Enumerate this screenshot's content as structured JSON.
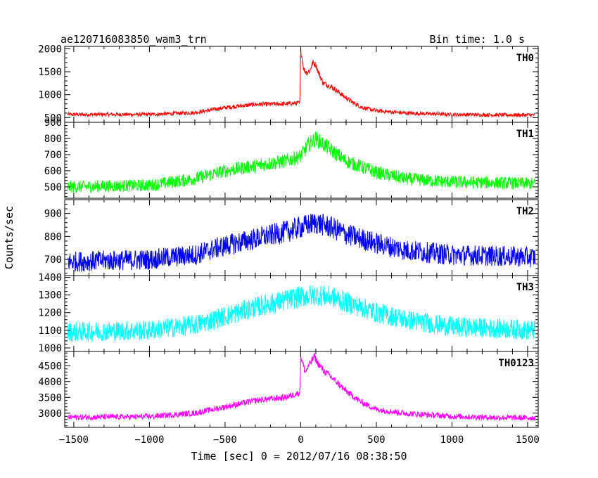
{
  "chart_data": {
    "type": "line",
    "title": "ae120716083850_wam3_trn",
    "bin_time_label": "Bin time: 1.0 s",
    "ylabel": "Counts/sec",
    "xlabel": "Time [sec] 0 = 2012/07/16 08:38:50",
    "xlim": [
      -1560,
      1570
    ],
    "xticks": [
      -1500,
      -1000,
      -500,
      0,
      500,
      1000,
      1500
    ],
    "xtick_labels": [
      "−1500",
      "−1000",
      "−500",
      "0",
      "500",
      "1000",
      "1500"
    ],
    "grid": false,
    "panels": [
      {
        "name": "TH0",
        "color": "#ff0000",
        "ylim": [
          400,
          2050
        ],
        "yticks": [
          500,
          1000,
          1500,
          2000
        ],
        "ytick_labels": [
          "500",
          "1000",
          "1500",
          "2000"
        ],
        "x": [
          -1540,
          -1000,
          -700,
          -500,
          -300,
          -100,
          -5,
          0,
          20,
          40,
          60,
          80,
          100,
          120,
          150,
          200,
          250,
          300,
          350,
          400,
          500,
          700,
          1000,
          1300,
          1550
        ],
        "values": [
          570,
          570,
          610,
          720,
          790,
          800,
          820,
          2000,
          1550,
          1480,
          1520,
          1700,
          1650,
          1460,
          1250,
          1180,
          1060,
          930,
          820,
          730,
          650,
          600,
          570,
          560,
          560
        ]
      },
      {
        "name": "TH1",
        "color": "#00ff00",
        "ylim": [
          430,
          900
        ],
        "yticks": [
          500,
          600,
          700,
          800,
          900
        ],
        "ytick_labels": [
          "500",
          "600",
          "700",
          "800",
          "900"
        ],
        "x": [
          -1540,
          -1000,
          -700,
          -500,
          -300,
          -100,
          0,
          50,
          100,
          200,
          300,
          500,
          700,
          1000,
          1300,
          1550
        ],
        "values": [
          500,
          510,
          550,
          600,
          630,
          660,
          690,
          760,
          800,
          730,
          660,
          590,
          550,
          530,
          525,
          520
        ]
      },
      {
        "name": "TH2",
        "color": "#0000ff",
        "ylim": [
          630,
          960
        ],
        "yticks": [
          700,
          800,
          900
        ],
        "ytick_labels": [
          "700",
          "800",
          "900"
        ],
        "x": [
          -1540,
          -1000,
          -700,
          -500,
          -300,
          -100,
          0,
          100,
          200,
          300,
          500,
          700,
          1000,
          1300,
          1550
        ],
        "values": [
          690,
          700,
          720,
          760,
          790,
          820,
          840,
          860,
          840,
          810,
          770,
          740,
          720,
          715,
          710
        ]
      },
      {
        "name": "TH3",
        "color": "#00ffff",
        "ylim": [
          980,
          1410
        ],
        "yticks": [
          1000,
          1100,
          1200,
          1300,
          1400
        ],
        "ytick_labels": [
          "1000",
          "1100",
          "1200",
          "1300",
          "1400"
        ],
        "x": [
          -1540,
          -1000,
          -700,
          -500,
          -300,
          -100,
          0,
          100,
          200,
          300,
          500,
          700,
          1000,
          1300,
          1550
        ],
        "values": [
          1090,
          1100,
          1130,
          1180,
          1230,
          1270,
          1290,
          1300,
          1290,
          1260,
          1200,
          1160,
          1120,
          1110,
          1100
        ]
      },
      {
        "name": "TH0123",
        "color": "#ff00ff",
        "ylim": [
          2550,
          4950
        ],
        "yticks": [
          3000,
          3500,
          4000,
          4500
        ],
        "ytick_labels": [
          "3000",
          "3500",
          "4000",
          "4500"
        ],
        "x": [
          -1540,
          -1000,
          -700,
          -500,
          -300,
          -100,
          -5,
          0,
          30,
          60,
          90,
          110,
          150,
          200,
          300,
          400,
          500,
          700,
          1000,
          1300,
          1550
        ],
        "values": [
          2870,
          2890,
          3000,
          3200,
          3400,
          3500,
          3650,
          4800,
          4300,
          4550,
          4800,
          4600,
          4350,
          4150,
          3700,
          3350,
          3120,
          2990,
          2900,
          2860,
          2850
        ]
      }
    ]
  }
}
